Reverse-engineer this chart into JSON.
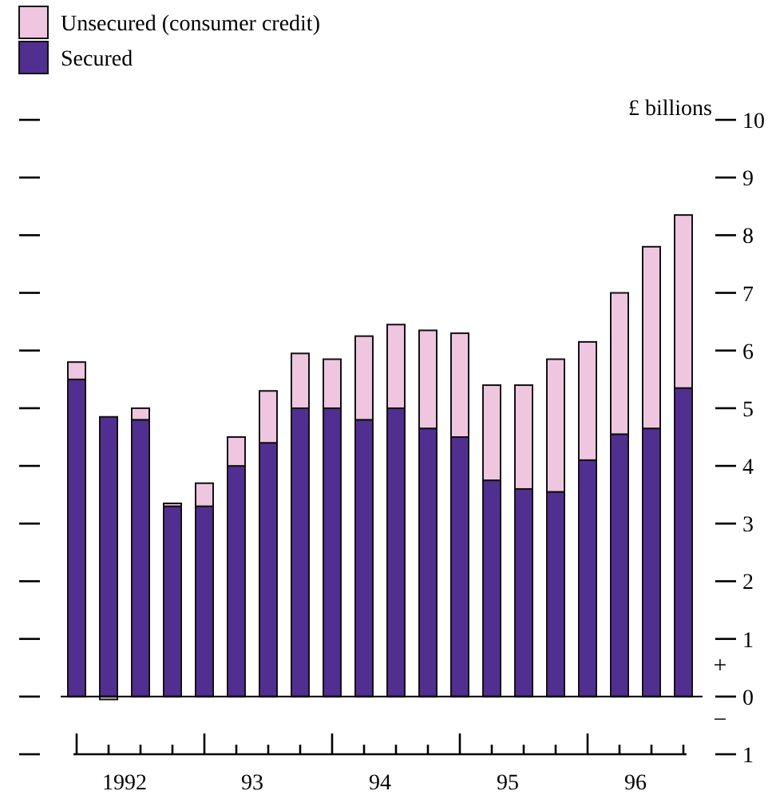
{
  "chart_data": {
    "type": "bar",
    "stacked": true,
    "ylabel": "£ billions",
    "categories": [
      null,
      "1992",
      null,
      null,
      null,
      "93",
      null,
      null,
      null,
      "94",
      null,
      null,
      null,
      "95",
      null,
      null,
      null,
      "96",
      null,
      null
    ],
    "series": [
      {
        "name": "Secured",
        "color": "#512f91",
        "values": [
          5.5,
          4.85,
          4.8,
          3.3,
          3.3,
          4.0,
          4.4,
          5.0,
          5.0,
          4.8,
          5.0,
          4.65,
          4.5,
          3.75,
          3.6,
          3.55,
          4.1,
          4.55,
          4.65,
          5.35
        ]
      },
      {
        "name": "Unsecured (consumer credit)",
        "color": "#efc6df",
        "values": [
          0.3,
          -0.05,
          0.2,
          0.05,
          0.4,
          0.5,
          0.9,
          0.95,
          0.85,
          1.45,
          1.45,
          1.7,
          1.8,
          1.65,
          1.8,
          2.3,
          2.05,
          2.45,
          3.15,
          3.0
        ]
      }
    ],
    "ylim": [
      -1,
      10
    ],
    "yticks": [
      {
        "value": -1,
        "label": "1"
      },
      0,
      1,
      2,
      3,
      4,
      5,
      6,
      7,
      8,
      9,
      10
    ],
    "ref_lines": [
      {
        "axis": "y",
        "value": 0,
        "label": null
      }
    ],
    "annotations": [
      "+",
      "−"
    ],
    "legend": "top left",
    "grid": false
  }
}
